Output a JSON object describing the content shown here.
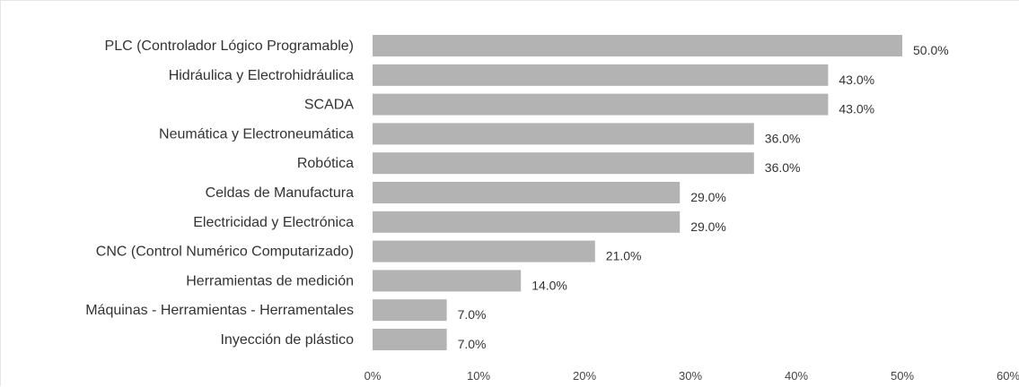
{
  "chart_data": {
    "type": "bar",
    "orientation": "horizontal",
    "categories": [
      "PLC (Controlador Lógico Programable)",
      "Hidráulica y Electrohidráulica",
      "SCADA",
      "Neumática y  Electroneumática",
      "Robótica",
      "Celdas de Manufactura",
      "Electricidad y Electrónica",
      "CNC (Control Numérico Computarizado)",
      "Herramientas de medición",
      "Máquinas - Herramientas - Herramentales",
      "Inyección de plástico"
    ],
    "values": [
      50.0,
      43.0,
      43.0,
      36.0,
      36.0,
      29.0,
      29.0,
      21.0,
      14.0,
      7.0,
      7.0
    ],
    "value_labels": [
      "50.0%",
      "43.0%",
      "43.0%",
      "36.0%",
      "36.0%",
      "29.0%",
      "29.0%",
      "21.0%",
      "14.0%",
      "7.0%",
      "7.0%"
    ],
    "x_ticks": [
      "0%",
      "10%",
      "20%",
      "30%",
      "40%",
      "50%",
      "60%"
    ],
    "xlim": [
      0,
      60
    ],
    "bar_color": "#b3b3b3",
    "grid": false,
    "legend": "none",
    "title": "",
    "xlabel": "",
    "ylabel": ""
  }
}
